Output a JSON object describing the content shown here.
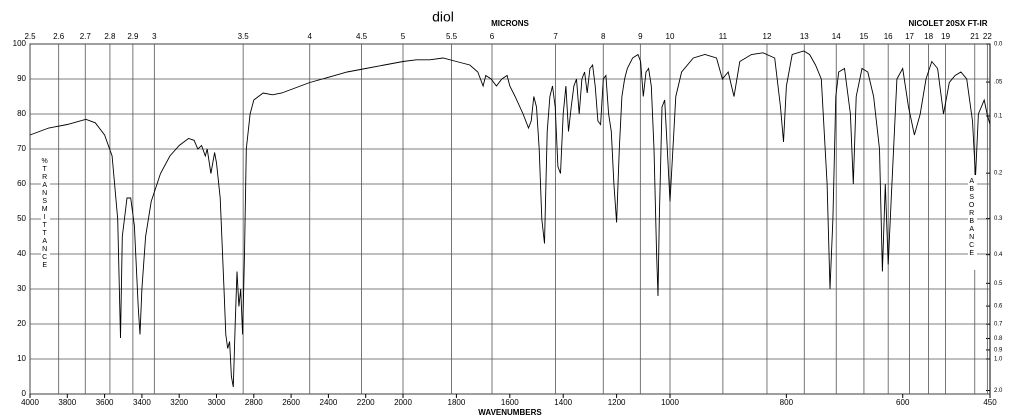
{
  "chart_data": {
    "type": "line",
    "title": "diol",
    "instrument": "NICOLET 20SX FT-IR",
    "xlabel": "WAVENUMBERS",
    "ylabel": "%TRANSMITTANCE",
    "y2label": "ABSORBANCE",
    "top_axis": {
      "label": "MICRONS",
      "ticks": [
        2.5,
        2.6,
        2.7,
        2.8,
        2.9,
        3,
        3.5,
        4,
        4.5,
        5,
        5.5,
        6,
        7,
        8,
        9,
        10,
        11,
        12,
        13,
        14,
        15,
        16,
        17,
        18,
        19,
        21,
        22
      ]
    },
    "xlim": [
      4000,
      450
    ],
    "xscale_segments": [
      4000,
      2000,
      1000,
      450
    ],
    "xticks": [
      4000,
      3800,
      3600,
      3400,
      3200,
      3000,
      2800,
      2600,
      2400,
      2200,
      2000,
      1800,
      1600,
      1400,
      1200,
      1000,
      800,
      600,
      450
    ],
    "ylim": [
      0,
      100
    ],
    "yticks": [
      0,
      10,
      20,
      30,
      40,
      50,
      60,
      70,
      80,
      90,
      100
    ],
    "y2ticks": [
      {
        "value": 0,
        "label": "0.0"
      },
      {
        "value": 0.05,
        "label": ".05"
      },
      {
        "value": 0.1,
        "label": "0.1"
      },
      {
        "value": 0.2,
        "label": "0.2"
      },
      {
        "value": 0.3,
        "label": "0.3"
      },
      {
        "value": 0.4,
        "label": "0.4"
      },
      {
        "value": 0.5,
        "label": "0.5"
      },
      {
        "value": 0.6,
        "label": "0.6"
      },
      {
        "value": 0.7,
        "label": "0.7"
      },
      {
        "value": 0.8,
        "label": "0.8"
      },
      {
        "value": 0.9,
        "label": "0.9"
      },
      {
        "value": 1,
        "label": "1.0"
      },
      {
        "value": 2,
        "label": "2.0"
      }
    ],
    "grid": true,
    "color": "#000000",
    "x": [
      4000,
      3900,
      3800,
      3700,
      3650,
      3600,
      3560,
      3530,
      3515,
      3505,
      3480,
      3460,
      3440,
      3420,
      3410,
      3400,
      3380,
      3350,
      3300,
      3250,
      3200,
      3150,
      3120,
      3100,
      3080,
      3060,
      3050,
      3030,
      3010,
      3000,
      2980,
      2960,
      2950,
      2940,
      2930,
      2920,
      2910,
      2900,
      2890,
      2880,
      2870,
      2860,
      2850,
      2840,
      2820,
      2800,
      2750,
      2700,
      2650,
      2600,
      2500,
      2400,
      2300,
      2200,
      2100,
      2000,
      1950,
      1900,
      1850,
      1800,
      1750,
      1720,
      1700,
      1690,
      1670,
      1650,
      1630,
      1610,
      1600,
      1580,
      1550,
      1530,
      1520,
      1510,
      1500,
      1490,
      1480,
      1470,
      1460,
      1450,
      1440,
      1430,
      1420,
      1410,
      1400,
      1390,
      1380,
      1370,
      1360,
      1350,
      1340,
      1330,
      1320,
      1310,
      1300,
      1290,
      1280,
      1270,
      1260,
      1250,
      1240,
      1230,
      1220,
      1210,
      1200,
      1190,
      1180,
      1170,
      1160,
      1140,
      1120,
      1110,
      1100,
      1090,
      1080,
      1070,
      1060,
      1050,
      1045,
      1040,
      1030,
      1020,
      1010,
      1000,
      990,
      980,
      960,
      940,
      920,
      910,
      900,
      890,
      880,
      860,
      840,
      820,
      810,
      805,
      800,
      790,
      770,
      760,
      750,
      740,
      730,
      725,
      720,
      715,
      710,
      700,
      690,
      685,
      680,
      670,
      660,
      650,
      640,
      635,
      630,
      625,
      620,
      610,
      600,
      590,
      580,
      570,
      560,
      550,
      540,
      530,
      520,
      510,
      500,
      490,
      480,
      475,
      470,
      460,
      455,
      450
    ],
    "values": [
      74,
      76,
      77,
      78.5,
      77.5,
      74,
      68,
      50,
      16,
      45,
      56,
      56,
      48,
      25,
      17,
      30,
      45,
      55,
      63,
      68,
      71,
      73,
      72.5,
      70,
      71,
      68,
      70,
      63,
      69,
      66,
      56,
      30,
      17,
      13,
      15,
      5,
      2,
      20,
      35,
      25,
      30,
      17,
      40,
      70,
      80,
      84,
      86,
      85.5,
      86,
      87,
      89,
      90.5,
      92,
      93,
      94,
      95,
      95.5,
      95.5,
      96,
      95,
      94,
      92,
      88,
      91,
      90,
      88,
      90,
      91,
      88,
      85,
      80,
      76,
      78,
      85,
      82,
      70,
      50,
      43,
      75,
      85,
      88,
      82,
      65,
      63,
      80,
      88,
      75,
      82,
      88,
      90,
      80,
      90,
      92,
      86,
      93,
      94,
      88,
      78,
      77,
      90,
      91,
      80,
      75,
      60,
      49,
      70,
      85,
      90,
      93,
      96,
      97,
      95,
      85,
      92,
      93,
      88,
      70,
      40,
      28,
      50,
      82,
      84,
      70,
      55,
      85,
      92,
      96,
      97,
      96,
      90,
      92,
      85,
      95,
      97,
      97.5,
      96,
      82,
      72,
      88,
      97,
      98,
      97,
      94,
      90,
      60,
      30,
      50,
      85,
      92,
      93,
      80,
      60,
      85,
      93,
      92,
      85,
      70,
      35,
      60,
      37,
      55,
      90,
      93,
      82,
      74,
      80,
      90,
      95,
      93,
      80,
      89,
      91,
      92,
      90,
      78,
      62,
      80,
      84,
      80,
      77
    ]
  }
}
